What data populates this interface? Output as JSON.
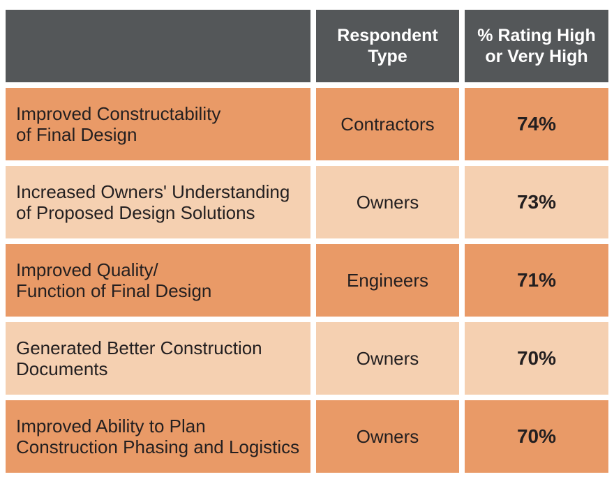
{
  "chart_data": {
    "type": "table",
    "columns": [
      "",
      "Respondent\nType",
      "% Rating High\nor Very High"
    ],
    "rows": [
      {
        "benefit": "Improved Constructability\nof Final Design",
        "respondent": "Contractors",
        "percent": "74%"
      },
      {
        "benefit": "Increased Owners' Understanding\nof Proposed Design Solutions",
        "respondent": "Owners",
        "percent": "73%"
      },
      {
        "benefit": "Improved Quality/\nFunction of Final Design",
        "respondent": "Engineers",
        "percent": "71%"
      },
      {
        "benefit": "Generated Better Construction\nDocuments",
        "respondent": "Owners",
        "percent": "70%"
      },
      {
        "benefit": "Improved Ability to Plan\nConstruction Phasing and Logistics",
        "respondent": "Owners",
        "percent": "70%"
      }
    ],
    "colors": {
      "header": "#545759",
      "row_dark": "#e99a67",
      "row_light": "#f5d0b1"
    }
  }
}
